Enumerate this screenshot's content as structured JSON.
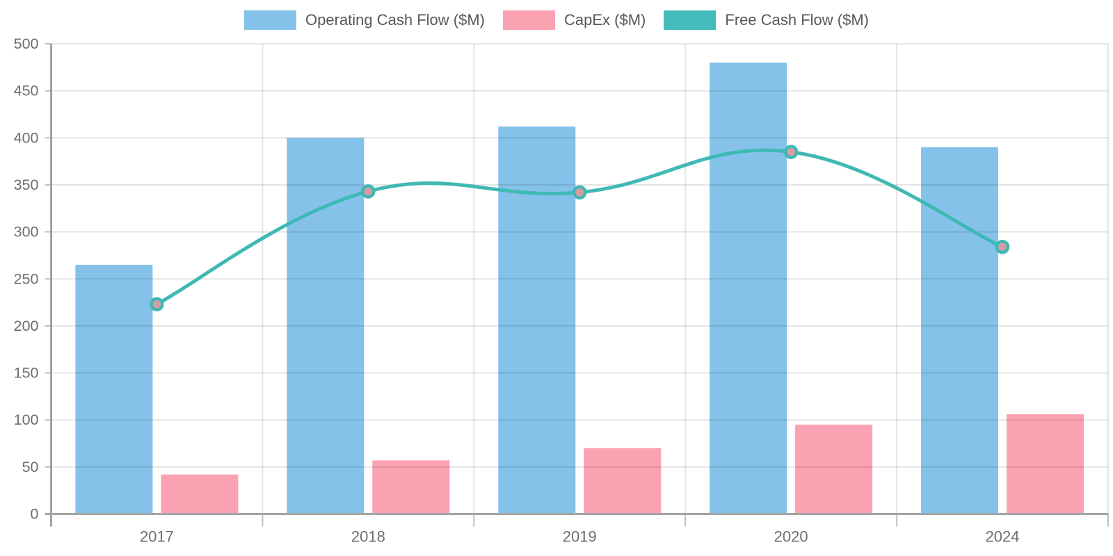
{
  "chart_data": {
    "type": "bar",
    "subtype": "combo-bar-line",
    "title": "",
    "xlabel": "",
    "ylabel": "",
    "categories": [
      "2017",
      "2018",
      "2019",
      "2020",
      "2024"
    ],
    "series": [
      {
        "name": "Operating Cash Flow ($M)",
        "kind": "bar",
        "color": "#85C2EA",
        "values": [
          265,
          400,
          412,
          480,
          390
        ]
      },
      {
        "name": "CapEx ($M)",
        "kind": "bar",
        "color": "#FAA2B2",
        "values": [
          42,
          57,
          70,
          95,
          106
        ]
      },
      {
        "name": "Free Cash Flow ($M)",
        "kind": "line",
        "color": "#44BCBB",
        "line_color": "#3EB9B4",
        "marker_fill": "#D99CA3",
        "values": [
          223,
          343,
          342,
          385,
          284
        ]
      }
    ],
    "ylim": [
      0,
      500
    ],
    "ytick_step": 50,
    "ytick_labels": [
      "0",
      "50",
      "100",
      "150",
      "200",
      "250",
      "300",
      "350",
      "400",
      "450",
      "500"
    ],
    "grid": true,
    "legend_position": "top"
  },
  "style_colors": {
    "background": "#ffffff",
    "gridline": "rgba(0,0,0,0.10)",
    "y_axis_line": "#8f8f8f",
    "x_axis_line": "#a5a5a5",
    "tick_mark": "rgba(0,0,0,0.25)",
    "tick_text": "#6d6d6d",
    "legend_text": "#55575b"
  }
}
